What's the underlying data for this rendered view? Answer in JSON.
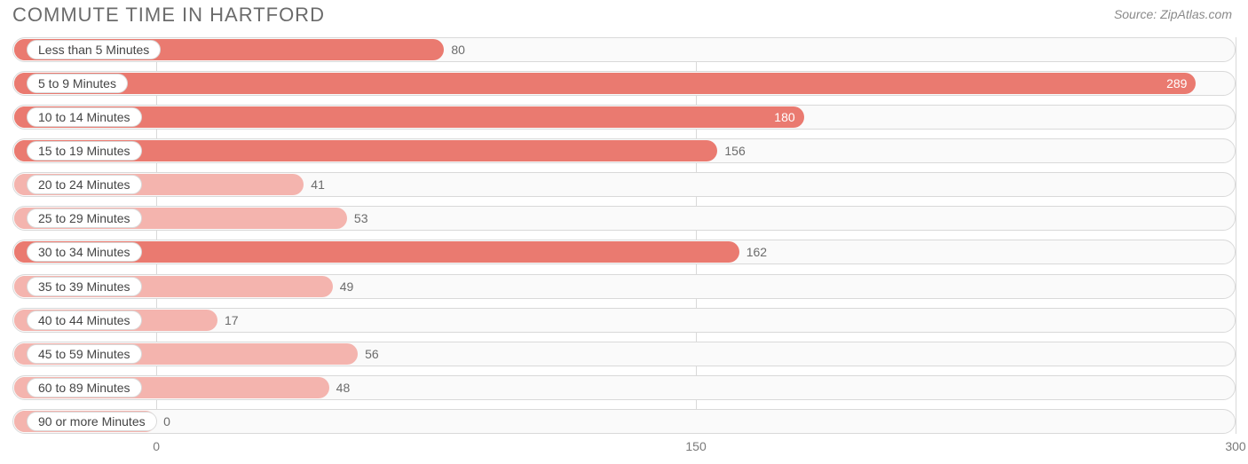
{
  "title": "COMMUTE TIME IN HARTFORD",
  "source": "Source: ZipAtlas.com",
  "chart": {
    "type": "bar-horizontal",
    "background_color": "#ffffff",
    "track_border_color": "#d9d9d9",
    "track_fill_color": "#fafafa",
    "grid_color": "#d9d9d9",
    "label_pill_bg": "#ffffff",
    "label_pill_border": "#d9d9d9",
    "label_font_size": 14,
    "title_font_size": 22,
    "title_color": "#6b6b6b",
    "value_font_size": 14,
    "value_color_outside": "#6b6b6b",
    "value_color_inside": "#ffffff",
    "x_axis": {
      "min": -40,
      "max": 300,
      "ticks": [
        0,
        150,
        300
      ],
      "tick_labels": [
        "0",
        "150",
        "300"
      ],
      "label_color": "#7a7a7a"
    },
    "label_region_end_value": 6,
    "bar_colors": {
      "light": "#f4b4ae",
      "dark": "#ea7a70"
    },
    "rows": [
      {
        "label": "Less than 5 Minutes",
        "value": 80,
        "bar_color": "#ea7a70",
        "value_inside": false
      },
      {
        "label": "5 to 9 Minutes",
        "value": 289,
        "bar_color": "#ea7a70",
        "value_inside": true
      },
      {
        "label": "10 to 14 Minutes",
        "value": 180,
        "bar_color": "#ea7a70",
        "value_inside": true
      },
      {
        "label": "15 to 19 Minutes",
        "value": 156,
        "bar_color": "#ea7a70",
        "value_inside": false
      },
      {
        "label": "20 to 24 Minutes",
        "value": 41,
        "bar_color": "#f4b4ae",
        "value_inside": false
      },
      {
        "label": "25 to 29 Minutes",
        "value": 53,
        "bar_color": "#f4b4ae",
        "value_inside": false
      },
      {
        "label": "30 to 34 Minutes",
        "value": 162,
        "bar_color": "#ea7a70",
        "value_inside": false
      },
      {
        "label": "35 to 39 Minutes",
        "value": 49,
        "bar_color": "#f4b4ae",
        "value_inside": false
      },
      {
        "label": "40 to 44 Minutes",
        "value": 17,
        "bar_color": "#f4b4ae",
        "value_inside": false
      },
      {
        "label": "45 to 59 Minutes",
        "value": 56,
        "bar_color": "#f4b4ae",
        "value_inside": false
      },
      {
        "label": "60 to 89 Minutes",
        "value": 48,
        "bar_color": "#f4b4ae",
        "value_inside": false
      },
      {
        "label": "90 or more Minutes",
        "value": 0,
        "bar_color": "#f4b4ae",
        "value_inside": false
      }
    ]
  }
}
